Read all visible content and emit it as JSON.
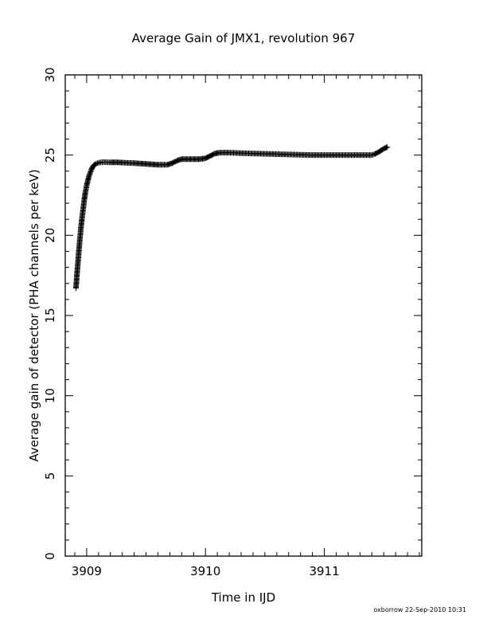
{
  "chart_data": {
    "type": "scatter",
    "title": "Average Gain of JMX1, revolution 967",
    "xlabel": "Time in IJD",
    "ylabel": "Average gain of detector (PHA channels per keV)",
    "xlim": [
      3908.82,
      3911.82
    ],
    "ylim": [
      0,
      30
    ],
    "xticks": [
      3909,
      3910,
      3911
    ],
    "yticks": [
      0,
      5,
      10,
      15,
      20,
      25,
      30
    ],
    "grid": false,
    "marker": "plus",
    "color": "#000000",
    "series": [
      {
        "x": [
          3908.91,
          3908.92,
          3908.93,
          3908.94,
          3908.95,
          3908.96,
          3908.97,
          3908.98,
          3908.99,
          3909.0,
          3909.01,
          3909.02,
          3909.03,
          3909.04,
          3909.05,
          3909.06,
          3909.07,
          3909.08,
          3909.09,
          3909.1,
          3909.12,
          3909.14,
          3909.16,
          3909.18,
          3909.2,
          3909.25,
          3909.3,
          3909.4,
          3909.5,
          3909.6,
          3909.68,
          3909.72,
          3909.76,
          3909.8,
          3909.85,
          3909.9,
          3909.95,
          3910.0,
          3910.04,
          3910.08,
          3910.12,
          3910.2,
          3910.3,
          3910.4,
          3910.5,
          3910.6,
          3910.7,
          3910.8,
          3910.9,
          3911.0,
          3911.1,
          3911.2,
          3911.3,
          3911.4,
          3911.42,
          3911.46,
          3911.5,
          3911.53
        ],
        "y": [
          16.7,
          17.7,
          18.6,
          19.5,
          20.3,
          21.0,
          21.6,
          22.2,
          22.7,
          23.1,
          23.4,
          23.7,
          23.9,
          24.1,
          24.25,
          24.35,
          24.42,
          24.46,
          24.5,
          24.52,
          24.55,
          24.56,
          24.56,
          24.55,
          24.55,
          24.55,
          24.53,
          24.5,
          24.45,
          24.4,
          24.4,
          24.5,
          24.65,
          24.75,
          24.75,
          24.75,
          24.75,
          24.8,
          24.95,
          25.1,
          25.15,
          25.15,
          25.12,
          25.1,
          25.08,
          25.06,
          25.04,
          25.02,
          25.0,
          25.0,
          25.0,
          25.0,
          25.0,
          25.0,
          25.05,
          25.2,
          25.4,
          25.5
        ]
      }
    ]
  },
  "footer": "oxborrow 22-Sep-2010 10:31"
}
